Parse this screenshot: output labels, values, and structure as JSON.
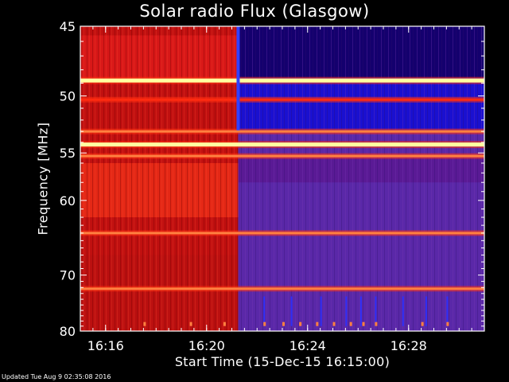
{
  "chart_data": {
    "type": "heatmap",
    "title": "Solar radio Flux (Glasgow)",
    "ylabel": "Frequency [MHz]",
    "xlabel": "Start Time (15-Dec-15 16:15:00)",
    "y_axis": {
      "range": [
        45,
        80
      ],
      "ticks": [
        45,
        50,
        55,
        60,
        70,
        80
      ],
      "tick_labels": [
        "45",
        "50",
        "55",
        "60",
        "70",
        "80"
      ],
      "direction": "inverted"
    },
    "x_axis": {
      "range": [
        "16:15:00",
        "16:31:00"
      ],
      "ticks": [
        "16:16",
        "16:20",
        "16:24",
        "16:28"
      ],
      "tick_labels": [
        "16:16",
        "16:20",
        "16:24",
        "16:28"
      ]
    },
    "transition_time": "16:21:15",
    "colormap": [
      "#000000",
      "#14006e",
      "#3a1e9e",
      "#5a28a8",
      "#7a2a90",
      "#c01010",
      "#ff2a10",
      "#ff8040",
      "#ffffa0"
    ],
    "emission_bands": [
      {
        "freq": 48.8,
        "intensity": "very high"
      },
      {
        "freq": 50.3,
        "intensity": "medium"
      },
      {
        "freq": 53.0,
        "intensity": "high"
      },
      {
        "freq": 54.2,
        "intensity": "very high"
      },
      {
        "freq": 55.3,
        "intensity": "high"
      },
      {
        "freq": 64.0,
        "intensity": "high"
      },
      {
        "freq": 72.2,
        "intensity": "high"
      }
    ],
    "grid": false
  },
  "footer": {
    "updated": "Updated Tue Aug  9 02:35:08 2016"
  }
}
